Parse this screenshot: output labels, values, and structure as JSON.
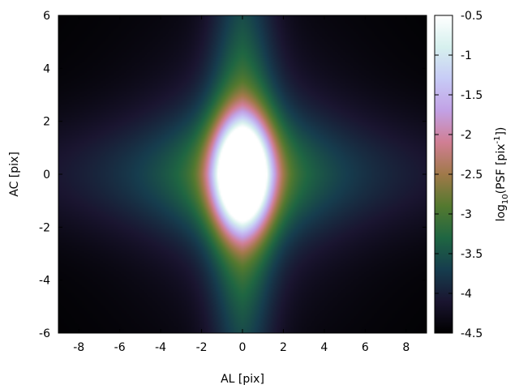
{
  "chart_data": {
    "type": "heatmap",
    "title": "",
    "xlabel": "AL [pix]",
    "ylabel": "AC [pix]",
    "xlim": [
      -9,
      9
    ],
    "ylim": [
      -6,
      6
    ],
    "x_ticks": [
      -8,
      -6,
      -4,
      -2,
      0,
      2,
      4,
      6,
      8
    ],
    "x_tick_labels": [
      "-8",
      "-6",
      "-4",
      "-2",
      "0",
      "2",
      "4",
      "6",
      "8"
    ],
    "y_ticks": [
      -6,
      -4,
      -2,
      0,
      2,
      4,
      6
    ],
    "y_tick_labels": [
      "-6",
      "-4",
      "-2",
      "0",
      "2",
      "4",
      "6"
    ],
    "colorbar": {
      "label_prefix": "log",
      "label_sub": "10",
      "label_mid": "(PSF [pix",
      "label_sup": "-1",
      "label_suffix": "])",
      "range": [
        -4.5,
        -0.5
      ],
      "ticks": [
        -4.5,
        -4,
        -3.5,
        -3,
        -2.5,
        -2,
        -1.5,
        -1,
        -0.5
      ],
      "tick_labels": [
        "-4.5",
        "-4",
        "-3.5",
        "-3",
        "-2.5",
        "-2",
        "-1.5",
        "-1",
        "-0.5"
      ],
      "colormap": "cubehelix",
      "colormap_stops": [
        "#000000",
        "#1a1530",
        "#163d4e",
        "#1f6642",
        "#54792f",
        "#a07949",
        "#d07e93",
        "#c2a1e5",
        "#c7cbf6",
        "#d6f0ee",
        "#ffffff"
      ]
    },
    "field_description": {
      "peak_value": -0.5,
      "peak_location": [
        0,
        0
      ],
      "core_sigma_al": 0.85,
      "core_sigma_ac": 1.3,
      "vertical_wing_sigma_al": 1.1,
      "horizontal_wing_sigma_ac": 1.6,
      "corner_value": -4.5
    }
  }
}
